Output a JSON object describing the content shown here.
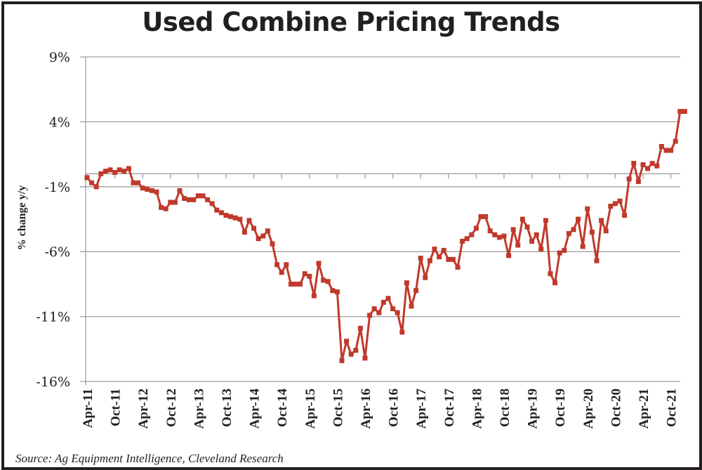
{
  "chart_data": {
    "type": "line",
    "title": "Used Combine Pricing Trends",
    "xlabel": "",
    "ylabel": "% change y/y",
    "source": "Source: Ag Equipment Intelligence, Cleveland Research",
    "ylim": [
      -16,
      9
    ],
    "yticks": [
      9,
      4,
      -1,
      -6,
      -11,
      -16
    ],
    "ytick_labels": [
      "9%",
      "4%",
      "-1%",
      "-6%",
      "-11%",
      "-16%"
    ],
    "xtick_labels": [
      "Apr-11",
      "Oct-11",
      "Apr-12",
      "Oct-12",
      "Apr-13",
      "Oct-13",
      "Apr-14",
      "Oct-14",
      "Apr-15",
      "Oct-15",
      "Apr-16",
      "Oct-16",
      "Apr-17",
      "Oct-17",
      "Apr-18",
      "Oct-18",
      "Apr-19",
      "Oct-19",
      "Apr-20",
      "Oct-20",
      "Apr-21",
      "Oct-21"
    ],
    "x_start": "Apr-11",
    "x_frequency": "monthly",
    "grid": "horizontal",
    "line_color": "#c0392b",
    "series": [
      {
        "name": "% change y/y",
        "values": [
          -0.3,
          -0.7,
          -1.0,
          0.0,
          0.2,
          0.3,
          0.1,
          0.3,
          0.2,
          0.4,
          -0.7,
          -0.7,
          -1.1,
          -1.2,
          -1.3,
          -1.4,
          -2.6,
          -2.7,
          -2.2,
          -2.2,
          -1.3,
          -1.9,
          -2.0,
          -2.0,
          -1.7,
          -1.7,
          -2.0,
          -2.3,
          -2.8,
          -3.0,
          -3.2,
          -3.3,
          -3.4,
          -3.5,
          -4.5,
          -3.6,
          -4.2,
          -5.0,
          -4.8,
          -4.4,
          -5.4,
          -7.0,
          -7.6,
          -7.0,
          -8.5,
          -8.5,
          -8.5,
          -7.7,
          -7.9,
          -9.4,
          -6.9,
          -8.2,
          -8.3,
          -9.0,
          -9.1,
          -14.4,
          -12.9,
          -13.9,
          -13.6,
          -11.9,
          -14.2,
          -10.9,
          -10.4,
          -10.7,
          -9.9,
          -9.6,
          -10.4,
          -10.7,
          -12.2,
          -8.4,
          -10.2,
          -9.0,
          -6.5,
          -8.0,
          -6.7,
          -5.8,
          -6.4,
          -5.9,
          -6.6,
          -6.6,
          -7.2,
          -5.2,
          -5.0,
          -4.7,
          -4.2,
          -3.3,
          -3.3,
          -4.4,
          -4.7,
          -4.9,
          -4.8,
          -6.3,
          -4.3,
          -5.5,
          -3.5,
          -4.1,
          -5.2,
          -4.7,
          -5.8,
          -3.6,
          -7.7,
          -8.4,
          -6.1,
          -5.9,
          -4.6,
          -4.3,
          -3.5,
          -5.6,
          -2.7,
          -4.5,
          -6.7,
          -3.6,
          -4.4,
          -2.5,
          -2.3,
          -2.1,
          -3.2,
          -0.4,
          0.8,
          -0.6,
          0.7,
          0.4,
          0.8,
          0.6,
          2.1,
          1.8,
          1.8,
          2.5,
          4.8,
          4.8
        ]
      }
    ]
  }
}
